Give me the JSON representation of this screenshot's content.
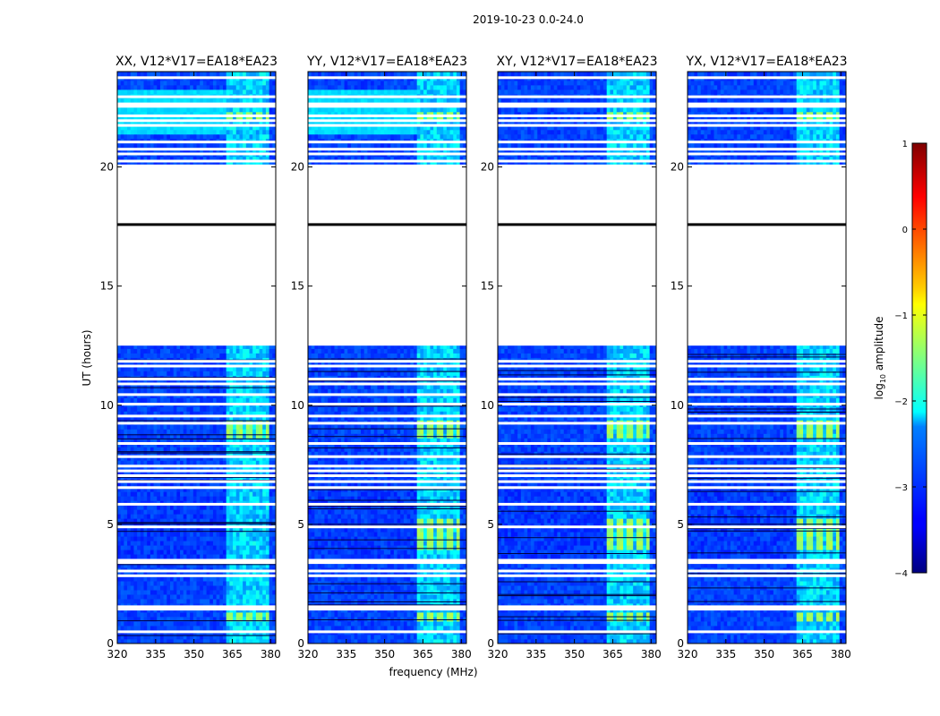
{
  "chart_data": {
    "type": "heatmap",
    "suptitle": "2019-10-23 0.0-24.0",
    "xlabel": "frequency (MHz)",
    "ylabel": "UT (hours)",
    "xlim": [
      320,
      382
    ],
    "ylim": [
      0,
      24
    ],
    "xticks": [
      320,
      335,
      350,
      365,
      380
    ],
    "yticks": [
      0,
      5,
      10,
      15,
      20
    ],
    "panels": [
      {
        "title": "XX, V12*V17=EA18*EA23"
      },
      {
        "title": "YY, V12*V17=EA18*EA23"
      },
      {
        "title": "XY, V12*V17=EA18*EA23"
      },
      {
        "title": "YX, V12*V17=EA18*EA23"
      }
    ],
    "colorbar": {
      "label": "log10 amplitude",
      "min": -4,
      "max": 1,
      "ticks": [
        -4,
        -3,
        -2,
        -1,
        0,
        1
      ],
      "colormap": "jet"
    },
    "no_data_hours": [
      [
        12.5,
        20.1
      ]
    ],
    "flagged_black_row_hour": 17.6,
    "rfi_band_mhz": [
      362,
      380
    ]
  }
}
